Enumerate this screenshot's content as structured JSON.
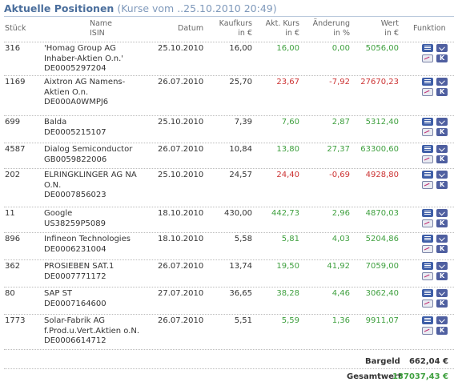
{
  "header": {
    "title": "Aktuelle Positionen",
    "subtitle": "(Kurse vom ..25.10.2010 20:49)"
  },
  "columns": {
    "stueck": "Stück",
    "name": "Name",
    "isin": "ISIN",
    "datum": "Datum",
    "kaufkurs": "Kaufkurs",
    "kaufkurs_unit": "in €",
    "akt_kurs": "Akt. Kurs",
    "akt_kurs_unit": "in €",
    "aenderung": "Änderung",
    "aenderung_unit": "in %",
    "wert": "Wert",
    "wert_unit": "in €",
    "funktion": "Funktion"
  },
  "positions": [
    {
      "stueck": "316",
      "name1": "'Homag Group AG",
      "name2": "Inhaber-Aktien O.n.'",
      "isin": "DE0005297204",
      "datum": "25.10.2010",
      "kaufkurs": "16,00",
      "akt_kurs": "16,00",
      "aenderung": "0,00",
      "wert": "5056,00",
      "trend": "green"
    },
    {
      "stueck": "1169",
      "name1": "Aixtron AG Namens-",
      "name2": "Aktien O.n.",
      "isin": "DE000A0WMPJ6",
      "datum": "26.07.2010",
      "kaufkurs": "25,70",
      "akt_kurs": "23,67",
      "aenderung": "-7,92",
      "wert": "27670,23",
      "trend": "red"
    },
    {
      "stueck": "699",
      "name1": "Balda",
      "name2": "",
      "isin": "DE0005215107",
      "datum": "25.10.2010",
      "kaufkurs": "7,39",
      "akt_kurs": "7,60",
      "aenderung": "2,87",
      "wert": "5312,40",
      "trend": "green"
    },
    {
      "stueck": "4587",
      "name1": "Dialog Semiconductor",
      "name2": "",
      "isin": "GB0059822006",
      "datum": "26.07.2010",
      "kaufkurs": "10,84",
      "akt_kurs": "13,80",
      "aenderung": "27,37",
      "wert": "63300,60",
      "trend": "green"
    },
    {
      "stueck": "202",
      "name1": "ELRINGKLINGER AG NA",
      "name2": "O.N.",
      "isin": "DE0007856023",
      "datum": "25.10.2010",
      "kaufkurs": "24,57",
      "akt_kurs": "24,40",
      "aenderung": "-0,69",
      "wert": "4928,80",
      "trend": "red"
    },
    {
      "stueck": "11",
      "name1": "Google",
      "name2": "",
      "isin": "US38259P5089",
      "datum": "18.10.2010",
      "kaufkurs": "430,00",
      "akt_kurs": "442,73",
      "aenderung": "2,96",
      "wert": "4870,03",
      "trend": "green"
    },
    {
      "stueck": "896",
      "name1": "Infineon Technologies",
      "name2": "",
      "isin": "DE0006231004",
      "datum": "18.10.2010",
      "kaufkurs": "5,58",
      "akt_kurs": "5,81",
      "aenderung": "4,03",
      "wert": "5204,86",
      "trend": "green"
    },
    {
      "stueck": "362",
      "name1": "PROSIEBEN SAT.1",
      "name2": "",
      "isin": "DE0007771172",
      "datum": "26.07.2010",
      "kaufkurs": "13,74",
      "akt_kurs": "19,50",
      "aenderung": "41,92",
      "wert": "7059,00",
      "trend": "green"
    },
    {
      "stueck": "80",
      "name1": "SAP ST",
      "name2": "",
      "isin": "DE0007164600",
      "datum": "27.07.2010",
      "kaufkurs": "36,65",
      "akt_kurs": "38,28",
      "aenderung": "4,46",
      "wert": "3062,40",
      "trend": "green"
    },
    {
      "stueck": "1773",
      "name1": "Solar-Fabrik AG",
      "name2": "f.Prod.u.Vert.Aktien o.N.",
      "isin": "DE0006614712",
      "datum": "26.07.2010",
      "kaufkurs": "5,51",
      "akt_kurs": "5,59",
      "aenderung": "1,36",
      "wert": "9911,07",
      "trend": "green"
    }
  ],
  "footer": {
    "bargeld_label": "Bargeld",
    "bargeld_value": "662,04 €",
    "gesamtwert_label": "Gesamtwert",
    "gesamtwert_value": "137037,43 €"
  },
  "colors": {
    "title": "#4a6e9c",
    "positive": "#3fa03f",
    "negative": "#cc3333"
  },
  "icons": [
    "info-icon",
    "buy-icon",
    "chart-icon",
    "sell-icon"
  ]
}
